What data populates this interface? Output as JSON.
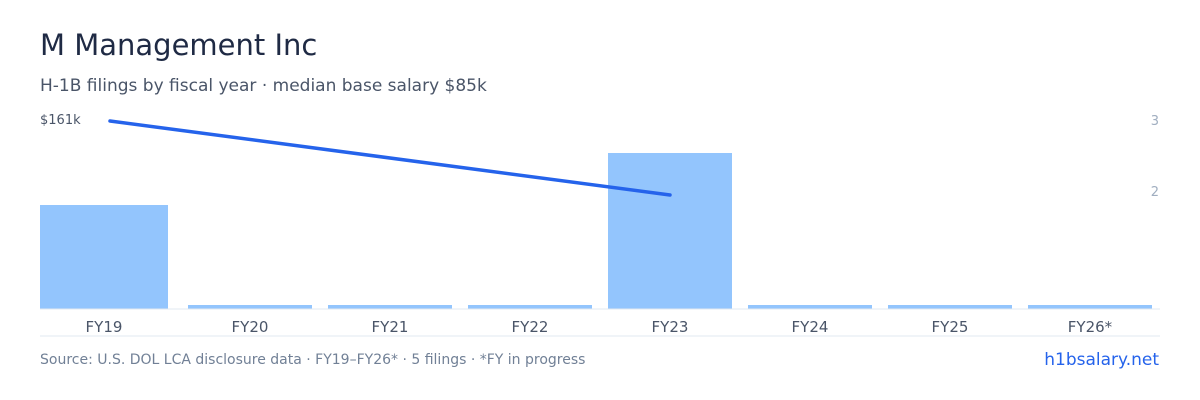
{
  "header": {
    "title": "M Management Inc",
    "subtitle": "H-1B filings by fiscal year · median base salary $85k"
  },
  "footer": {
    "source": "Source: U.S. DOL LCA disclosure data · FY19–FY26* · 5 filings · *FY in progress",
    "brand": "h1bsalary.net"
  },
  "colors": {
    "bar": "#93c5fd",
    "line": "#2563eb",
    "axis": "#d1d5db",
    "tick": "#4a5568",
    "right_tick": "#a0aec0"
  },
  "chart_data": {
    "type": "bar",
    "categories": [
      "FY19",
      "FY20",
      "FY21",
      "FY22",
      "FY23",
      "FY24",
      "FY25",
      "FY26*"
    ],
    "series": [
      {
        "name": "",
        "type": "bar",
        "axis": "right",
        "values": [
          2,
          0,
          0,
          0,
          3,
          0,
          0,
          0
        ]
      },
      {
        "name": "",
        "type": "line",
        "axis": "left",
        "values": [
          161,
          null,
          null,
          null,
          139,
          null,
          null,
          null
        ]
      }
    ],
    "left_axis": {
      "label": "$161k",
      "tick_value": 161
    },
    "right_axis": {
      "ticks": [
        "3",
        "2"
      ],
      "tick_values": [
        3,
        2
      ],
      "ylim": [
        0,
        3
      ]
    },
    "grid": false,
    "legend": "none"
  }
}
